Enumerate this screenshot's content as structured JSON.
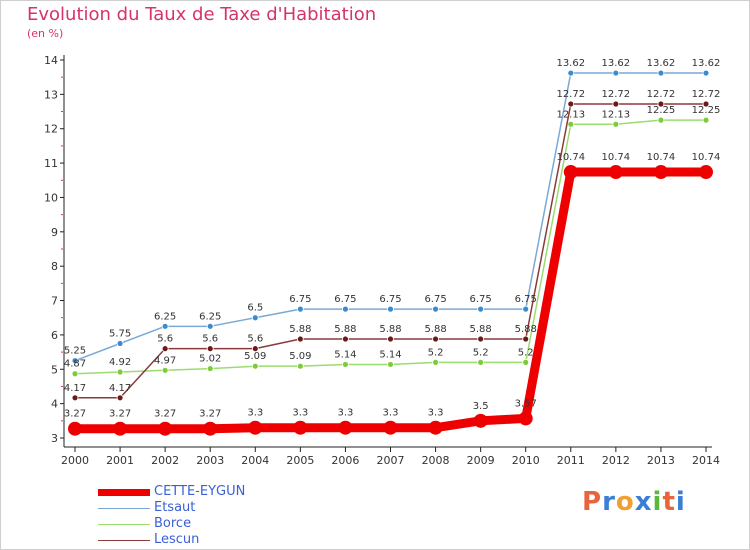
{
  "header": {
    "title": "Evolution du Taux de Taxe d'Habitation",
    "unit": "(en %)"
  },
  "chart_data": {
    "type": "line",
    "title": "Evolution du Taux de Taxe d'Habitation",
    "ylabel": "(en %)",
    "xlabel": "",
    "x": [
      2000,
      2001,
      2002,
      2003,
      2004,
      2005,
      2006,
      2007,
      2008,
      2009,
      2010,
      2011,
      2012,
      2013,
      2014
    ],
    "ylim": [
      3,
      14
    ],
    "yticks": [
      3,
      4,
      5,
      6,
      7,
      8,
      9,
      10,
      11,
      12,
      13,
      14
    ],
    "grid": false,
    "legend_position": "bottom-left",
    "series": [
      {
        "name": "CETTE-EYGUN",
        "color": "#ee0000",
        "marker": "#ee0000",
        "values": [
          3.27,
          3.27,
          3.27,
          3.27,
          3.3,
          3.3,
          3.3,
          3.3,
          3.3,
          3.5,
          3.57,
          10.74,
          10.74,
          10.74,
          10.74
        ],
        "labels": [
          "3.27",
          "3.27",
          "3.27",
          "3.27",
          "3.3",
          "3.3",
          "3.3",
          "3.3",
          "3.3",
          "3.5",
          "3.57",
          "10.74",
          "10.74",
          "10.74",
          "10.74"
        ]
      },
      {
        "name": "Etsaut",
        "color": "#7aa9d6",
        "marker": "#3b8bd0",
        "values": [
          5.25,
          5.75,
          6.25,
          6.25,
          6.5,
          6.75,
          6.75,
          6.75,
          6.75,
          6.75,
          6.75,
          13.62,
          13.62,
          13.62,
          13.62
        ],
        "labels": [
          "5.25",
          "5.75",
          "6.25",
          "6.25",
          "6.5",
          "6.75",
          "6.75",
          "6.75",
          "6.75",
          "6.75",
          "6.75",
          "13.62",
          "13.62",
          "13.62",
          "13.62"
        ]
      },
      {
        "name": "Borce",
        "color": "#9bdc6e",
        "marker": "#7ccc3a",
        "values": [
          4.87,
          4.92,
          4.97,
          5.02,
          5.09,
          5.09,
          5.14,
          5.14,
          5.2,
          5.2,
          5.2,
          12.13,
          12.13,
          12.25,
          12.25
        ],
        "labels": [
          "4.87",
          "4.92",
          "4.97",
          "5.02",
          "5.09",
          "5.09",
          "5.14",
          "5.14",
          "5.2",
          "5.2",
          "5.2",
          "12.13",
          "12.13",
          "12.25",
          "12.25"
        ]
      },
      {
        "name": "Lescun",
        "color": "#8b3a3a",
        "marker": "#6b1a1a",
        "values": [
          4.17,
          4.17,
          5.6,
          5.6,
          5.6,
          5.88,
          5.88,
          5.88,
          5.88,
          5.88,
          5.88,
          12.72,
          12.72,
          12.72,
          12.72
        ],
        "labels": [
          "4.17",
          "4.17",
          "5.6",
          "5.6",
          "5.6",
          "5.88",
          "5.88",
          "5.88",
          "5.88",
          "5.88",
          "5.88",
          "12.72",
          "12.72",
          "12.72",
          "12.72"
        ]
      }
    ]
  },
  "legend": [
    {
      "label": "CETTE-EYGUN"
    },
    {
      "label": "Etsaut"
    },
    {
      "label": "Borce"
    },
    {
      "label": "Lescun"
    }
  ],
  "logo": {
    "letters": [
      "P",
      "r",
      "o",
      "x",
      "i",
      "t",
      "i"
    ],
    "colors": [
      "#e8643c",
      "#3a7fd6",
      "#f0a030",
      "#3a7fd6",
      "#5cb83c",
      "#e8643c",
      "#3a7fd6"
    ]
  }
}
